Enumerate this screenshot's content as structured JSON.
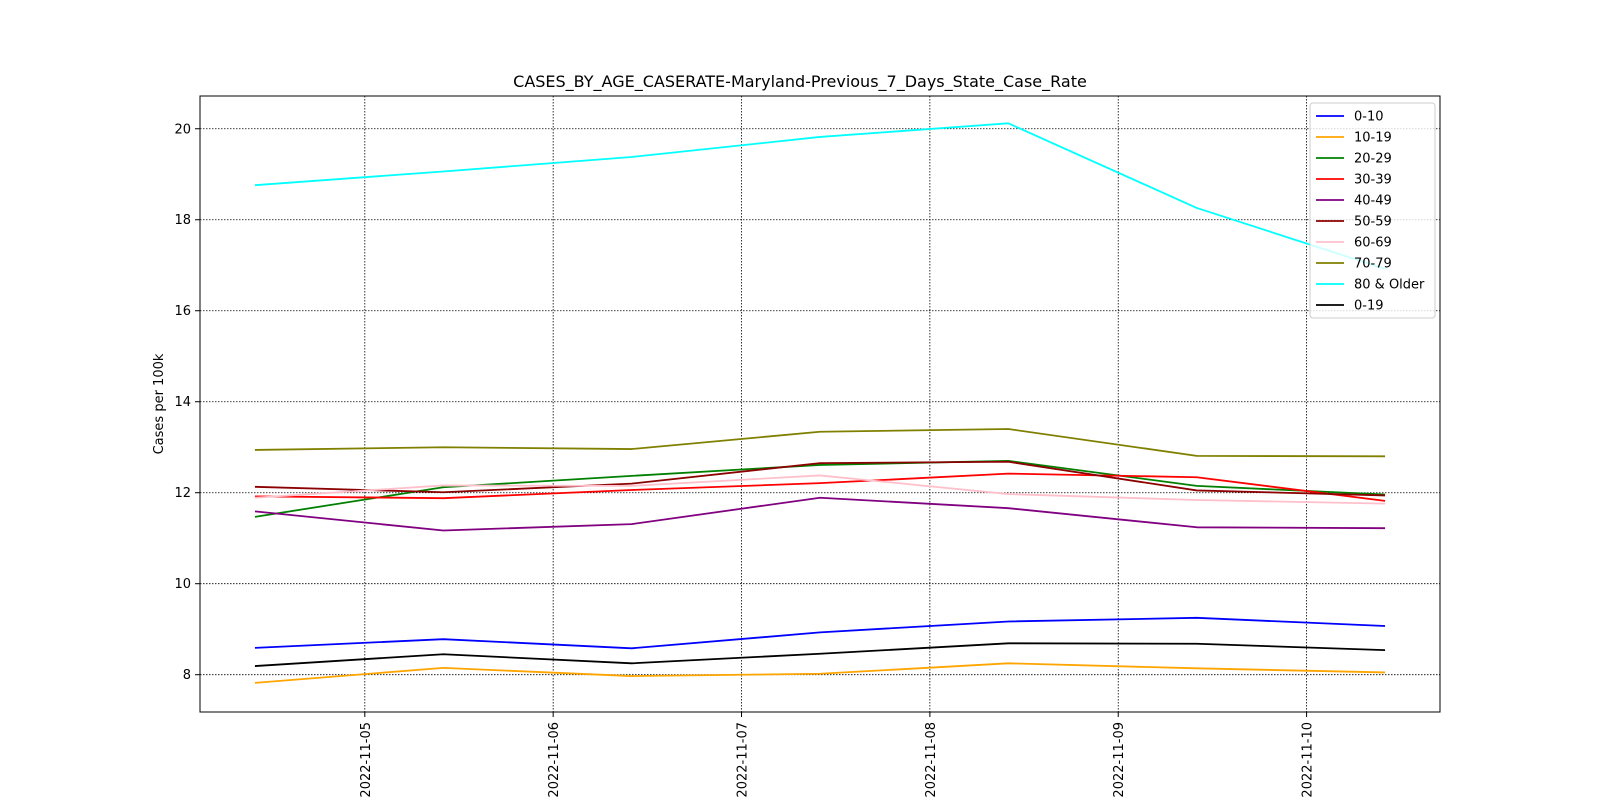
{
  "chart_data": {
    "type": "line",
    "title": "CASES_BY_AGE_CASERATE-Maryland-Previous_7_Days_State_Case_Rate",
    "xlabel": "",
    "ylabel": "Cases per 100k",
    "x": [
      "2022-11-04 10:00",
      "2022-11-05 10:00",
      "2022-11-06 10:00",
      "2022-11-07 10:00",
      "2022-11-08 10:00",
      "2022-11-09 10:00",
      "2022-11-10 10:00"
    ],
    "x_ticks": [
      "2022-11-05",
      "2022-11-06",
      "2022-11-07",
      "2022-11-08",
      "2022-11-09",
      "2022-11-10"
    ],
    "xlim": [
      "2022-11-04 03:00",
      "2022-11-10 17:00"
    ],
    "ylim": [
      7.18,
      20.72
    ],
    "y_ticks": [
      "8",
      "10",
      "12",
      "14",
      "16",
      "18",
      "20"
    ],
    "grid": true,
    "legend_position": "top-right",
    "series": [
      {
        "name": "0-10",
        "color": "#0000ff",
        "values": [
          8.59,
          8.78,
          8.58,
          8.93,
          9.17,
          9.25,
          9.07
        ]
      },
      {
        "name": "10-19",
        "color": "#ffa500",
        "values": [
          7.82,
          8.15,
          7.97,
          8.02,
          8.25,
          8.14,
          8.05
        ]
      },
      {
        "name": "20-29",
        "color": "#008000",
        "values": [
          11.47,
          12.12,
          12.37,
          12.61,
          12.7,
          12.15,
          11.96
        ]
      },
      {
        "name": "30-39",
        "color": "#ff0000",
        "values": [
          11.92,
          11.88,
          12.06,
          12.21,
          12.42,
          12.34,
          11.82
        ]
      },
      {
        "name": "40-49",
        "color": "#800080",
        "values": [
          11.59,
          11.17,
          11.31,
          11.89,
          11.66,
          11.24,
          11.22
        ]
      },
      {
        "name": "50-59",
        "color": "#8b0000",
        "values": [
          12.13,
          12.01,
          12.2,
          12.65,
          12.68,
          12.05,
          11.94
        ]
      },
      {
        "name": "60-69",
        "color": "#ffc0cb",
        "values": [
          11.89,
          12.16,
          12.15,
          12.38,
          11.97,
          11.84,
          11.76
        ]
      },
      {
        "name": "70-79",
        "color": "#808000",
        "values": [
          12.94,
          13.0,
          12.96,
          13.34,
          13.4,
          12.81,
          12.8
        ]
      },
      {
        "name": "80 & Older",
        "color": "#00ffff",
        "values": [
          18.76,
          19.06,
          19.38,
          19.82,
          20.12,
          18.26,
          16.92
        ]
      },
      {
        "name": "0-19",
        "color": "#000000",
        "values": [
          8.19,
          8.45,
          8.25,
          8.46,
          8.69,
          8.68,
          8.54
        ]
      }
    ]
  }
}
